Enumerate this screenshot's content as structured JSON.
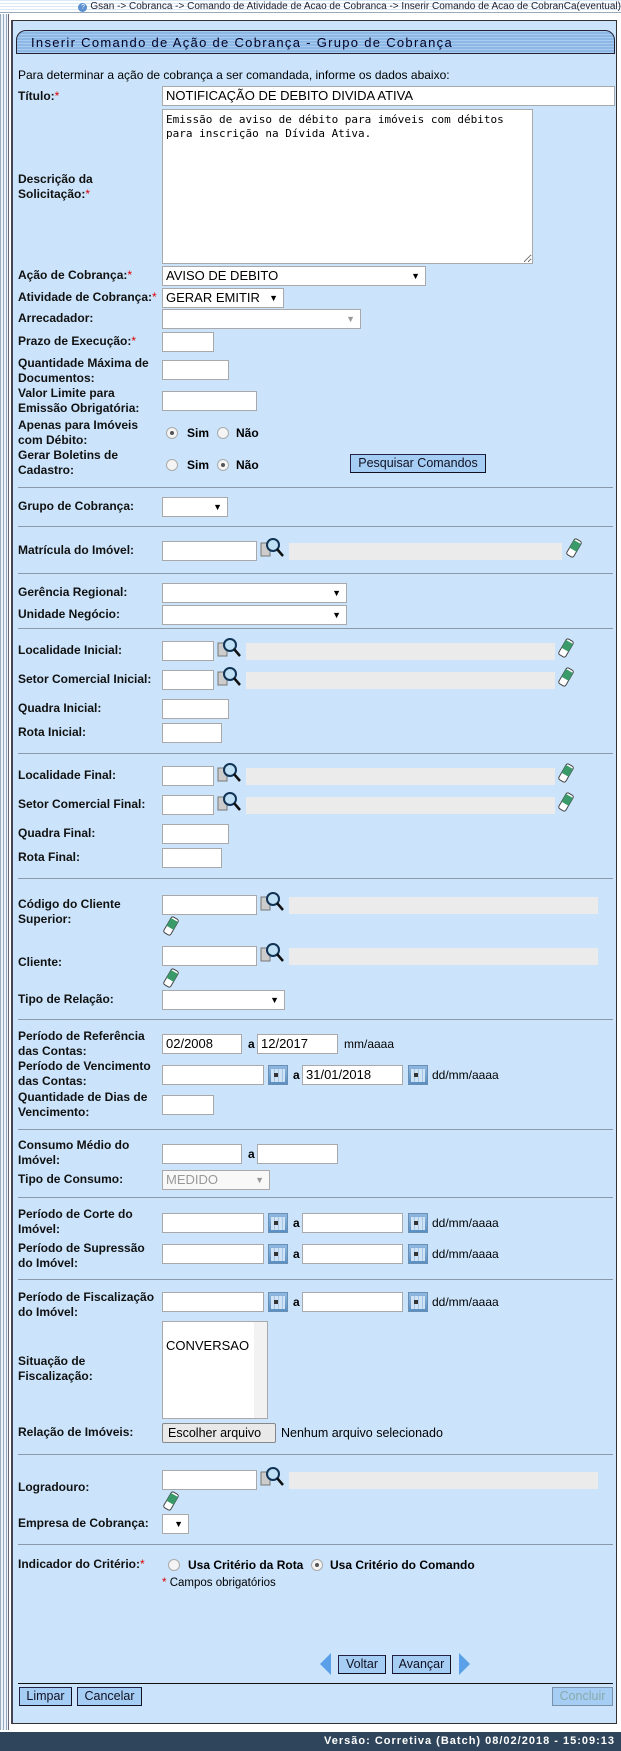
{
  "breadcrumb": "Gsan -> Cobranca -> Comando de Atividade de Acao de Cobranca -> Inserir Comando de Acao de CobranCa(eventual)",
  "title": "Inserir Comando de Ação de Cobrança - Grupo de Cobrança",
  "intro": "Para determinar a ação de cobrança a ser comandada, informe os dados abaixo:",
  "req": "*",
  "labels": {
    "titulo": "Título:",
    "descricao": "Descrição da\nSolicitação:",
    "acao": "Ação de Cobrança:",
    "atividade": "Atividade de Cobrança:",
    "arrecadador": "Arrecadador:",
    "prazo": "Prazo de Execução:",
    "qtd_max": "Quantidade Máxima de\nDocumentos:",
    "valor_limite": "Valor Limite para\nEmissão Obrigatória:",
    "apenas_debito": "Apenas para Imóveis\ncom Débito:",
    "gerar_boletins": "Gerar Boletins de\nCadastro:",
    "grupo": "Grupo de Cobrança:",
    "matricula": "Matrícula do Imóvel:",
    "gerencia": "Gerência Regional:",
    "unidade": "Unidade Negócio:",
    "loc_ini": "Localidade Inicial:",
    "setor_ini": "Setor Comercial Inicial:",
    "quadra_ini": "Quadra Inicial:",
    "rota_ini": "Rota Inicial:",
    "loc_fim": "Localidade Final:",
    "setor_fim": "Setor Comercial Final:",
    "quadra_fim": "Quadra Final:",
    "rota_fim": "Rota Final:",
    "cliente_sup": "Código do Cliente\nSuperior:",
    "cliente": "Cliente:",
    "tipo_relacao": "Tipo de Relação:",
    "ref_contas": "Período de Referência\ndas Contas:",
    "venc_contas": "Período de Vencimento\ndas Contas:",
    "qtd_dias": "Quantidade de Dias de\nVencimento:",
    "consumo_medio": "Consumo Médio do\nImóvel:",
    "tipo_consumo": "Tipo de Consumo:",
    "corte": "Período de Corte do\nImóvel:",
    "supressao": "Período de Supressão\ndo Imóvel:",
    "fiscalizacao": "Período de Fiscalização\ndo Imóvel:",
    "sit_fiscalizacao": "Situação de\nFiscalização:",
    "relacao_imoveis": "Relação de Imóveis:",
    "logradouro": "Logradouro:",
    "empresa": "Empresa de Cobrança:",
    "indicador": "Indicador do Critério:"
  },
  "values": {
    "titulo": "NOTIFICAÇÃO DE DEBITO DIVIDA ATIVA",
    "descricao": "Emissão de aviso de débito para imóveis com débitos para inscrição na Dívida Ativa.",
    "acao": "AVISO DE DEBITO",
    "atividade": "GERAR EMITIR",
    "ref_ini": "02/2008",
    "ref_fim": "12/2017",
    "venc_fim": "31/01/2018",
    "tipo_consumo": "MEDIDO",
    "sit_fiscalizacao_option": "CONVERSAO",
    "file_status": "Nenhum arquivo selecionado"
  },
  "radios": {
    "sim": "Sim",
    "nao": "Não",
    "apenas_debito": "Sim",
    "gerar_boletins": "Não",
    "rota": "Usa Critério da Rota",
    "comando": "Usa Critério do Comando",
    "indicador": "Usa Critério do Comando"
  },
  "a": "a",
  "fmt_mes": "mm/aaaa",
  "fmt_data": "dd/mm/aaaa",
  "campos_obrig": "Campos obrigatórios",
  "buttons": {
    "pesquisar": "Pesquisar Comandos",
    "escolher": "Escolher arquivo",
    "voltar": "Voltar",
    "avancar": "Avançar",
    "limpar": "Limpar",
    "cancelar": "Cancelar",
    "concluir": "Concluir"
  },
  "footer": "Versão: Corretiva (Batch) 08/02/2018 - 15:09:13"
}
